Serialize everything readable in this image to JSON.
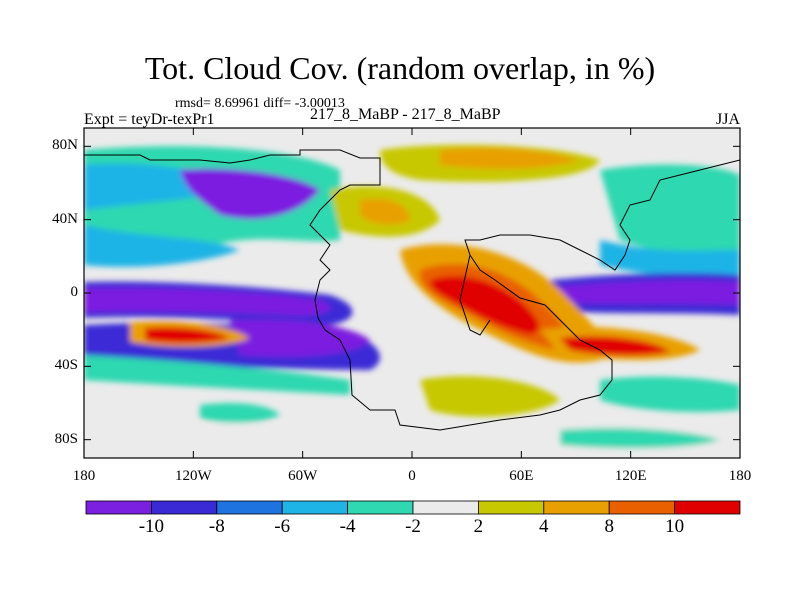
{
  "title": "Tot. Cloud Cov. (random overlap, in %)",
  "stats": "rmsd= 8.69961 diff= -3.00013",
  "experiment": "Expt = teyDr-texPr1",
  "case": "217_8_MaBP - 217_8_MaBP",
  "season": "JJA",
  "lat_ticks": [
    "80N",
    "40N",
    "0",
    "40S",
    "80S"
  ],
  "lon_ticks": [
    "180",
    "120W",
    "60W",
    "0",
    "60E",
    "120E",
    "180"
  ],
  "colorbar": {
    "labels": [
      "-10",
      "-8",
      "-6",
      "-4",
      "-2",
      "2",
      "4",
      "8",
      "10"
    ],
    "colors": [
      "#7b1fe0",
      "#3a2ad6",
      "#1e73e0",
      "#1fb4e6",
      "#2fd8b0",
      "#ebebeb",
      "#c8c800",
      "#e8a000",
      "#e86000",
      "#e00000"
    ]
  }
}
